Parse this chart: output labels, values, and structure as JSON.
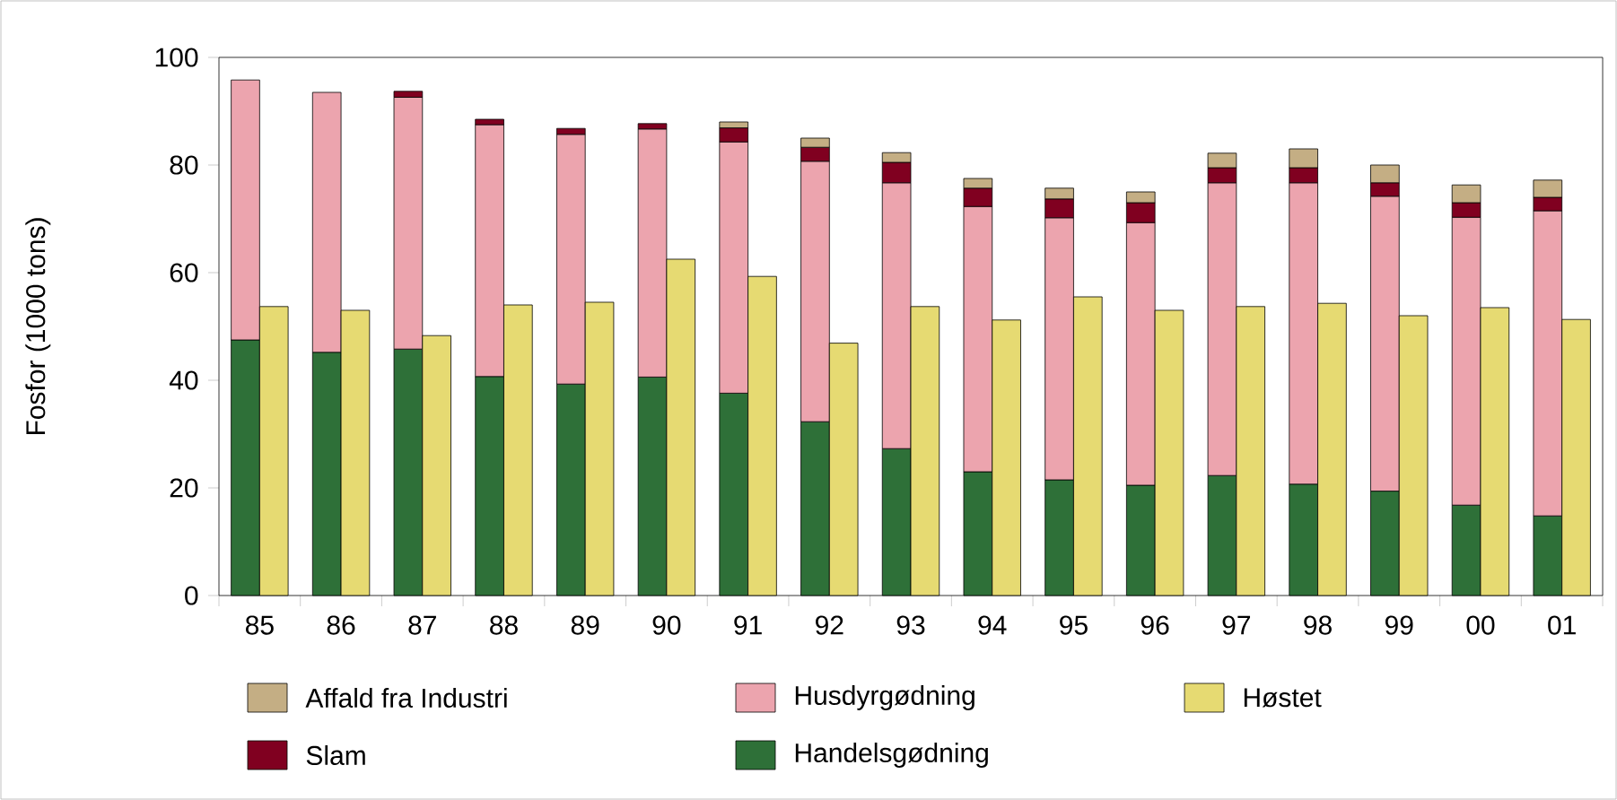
{
  "chart_data": [
    {
      "type": "bar",
      "stacked": true,
      "ylabel": "Fosfor (1000 tons)",
      "categories": [
        "85",
        "86",
        "87",
        "88",
        "89",
        "90",
        "91",
        "92",
        "93",
        "94",
        "95",
        "96",
        "97",
        "98",
        "99",
        "00",
        "01"
      ],
      "ylim": [
        0,
        100
      ],
      "yticks": [
        0,
        20,
        40,
        60,
        80,
        100
      ],
      "legend": "bottom",
      "series": [
        {
          "name": "Handelsgødning",
          "color": "#2e7038",
          "values": [
            47.5,
            45.2,
            45.8,
            40.7,
            39.3,
            40.6,
            37.6,
            32.3,
            27.3,
            23,
            21.5,
            20.5,
            22.3,
            20.7,
            19.4,
            16.8,
            14.8
          ]
        },
        {
          "name": "Husdyrgødning",
          "color": "#eca4ae",
          "values": [
            48.3,
            48.3,
            46.8,
            46.8,
            46.4,
            46.1,
            46.7,
            48.4,
            49.4,
            49.3,
            48.7,
            48.8,
            54.4,
            56,
            54.8,
            53.5,
            56.7
          ]
        },
        {
          "name": "Slam",
          "color": "#800020",
          "values": [
            0,
            0,
            1.1,
            1,
            1.1,
            1,
            2.6,
            2.6,
            3.8,
            3.4,
            3.5,
            3.7,
            2.8,
            2.8,
            2.5,
            2.7,
            2.5
          ]
        },
        {
          "name": "Affald fra Industri",
          "color": "#c4ae84",
          "values": [
            0,
            0,
            0,
            0,
            0,
            0,
            1.1,
            1.7,
            1.8,
            1.8,
            2,
            2,
            2.7,
            3.5,
            3.3,
            3.3,
            3.2
          ]
        }
      ]
    },
    {
      "type": "bar",
      "tick_labels": false,
      "categories": [
        "85",
        "86",
        "87",
        "88",
        "89",
        "90",
        "91",
        "92",
        "93",
        "94",
        "95",
        "96",
        "97",
        "98",
        "99",
        "00",
        "01"
      ],
      "ylim": [
        0,
        100
      ],
      "yticks": [
        0,
        20,
        40,
        60,
        80,
        100
      ],
      "legend": "bottom",
      "series": [
        {
          "name": "Høstet",
          "color": "#e6da72",
          "values": [
            53.7,
            53,
            48.3,
            54,
            54.5,
            62.5,
            59.3,
            46.9,
            53.7,
            51.2,
            55.5,
            53,
            53.7,
            54.3,
            52,
            53.5,
            51.3
          ]
        }
      ]
    }
  ]
}
